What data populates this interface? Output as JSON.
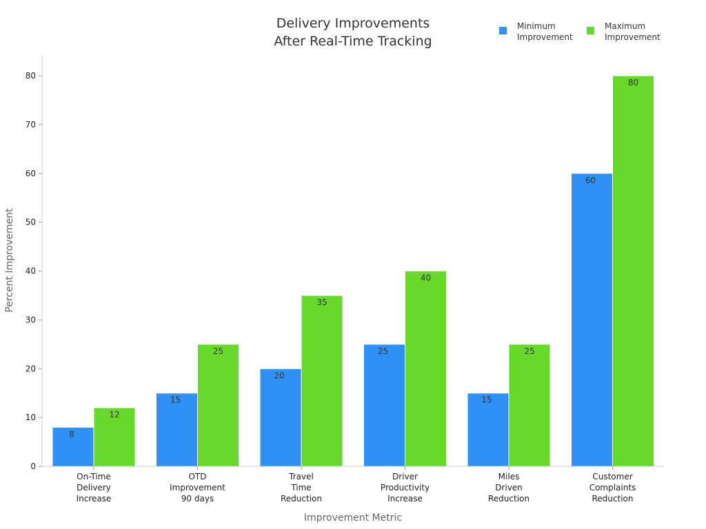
{
  "chart_data": {
    "type": "bar",
    "title": [
      "Delivery Improvements",
      "After Real-Time Tracking"
    ],
    "xlabel": "Improvement Metric",
    "ylabel": "Percent Improvement",
    "ylim": [
      0,
      80
    ],
    "yticks": [
      0,
      10,
      20,
      30,
      40,
      50,
      60,
      70,
      80
    ],
    "categories": [
      [
        "On-Time",
        "Delivery",
        "Increase"
      ],
      [
        "OTD",
        "Improvement",
        "90 days"
      ],
      [
        "Travel",
        "Time",
        "Reduction"
      ],
      [
        "Driver",
        "Productivity",
        "Increase"
      ],
      [
        "Miles",
        "Driven",
        "Reduction"
      ],
      [
        "Customer",
        "Complaints",
        "Reduction"
      ]
    ],
    "series": [
      {
        "name": [
          "Minimum",
          "Improvement"
        ],
        "color": "#2f91f5",
        "values": [
          8,
          15,
          20,
          25,
          15,
          60
        ]
      },
      {
        "name": [
          "Maximum",
          "Improvement"
        ],
        "color": "#66d92a",
        "values": [
          12,
          25,
          35,
          40,
          25,
          80
        ]
      }
    ],
    "legend_position": "top-right",
    "grid": false
  }
}
